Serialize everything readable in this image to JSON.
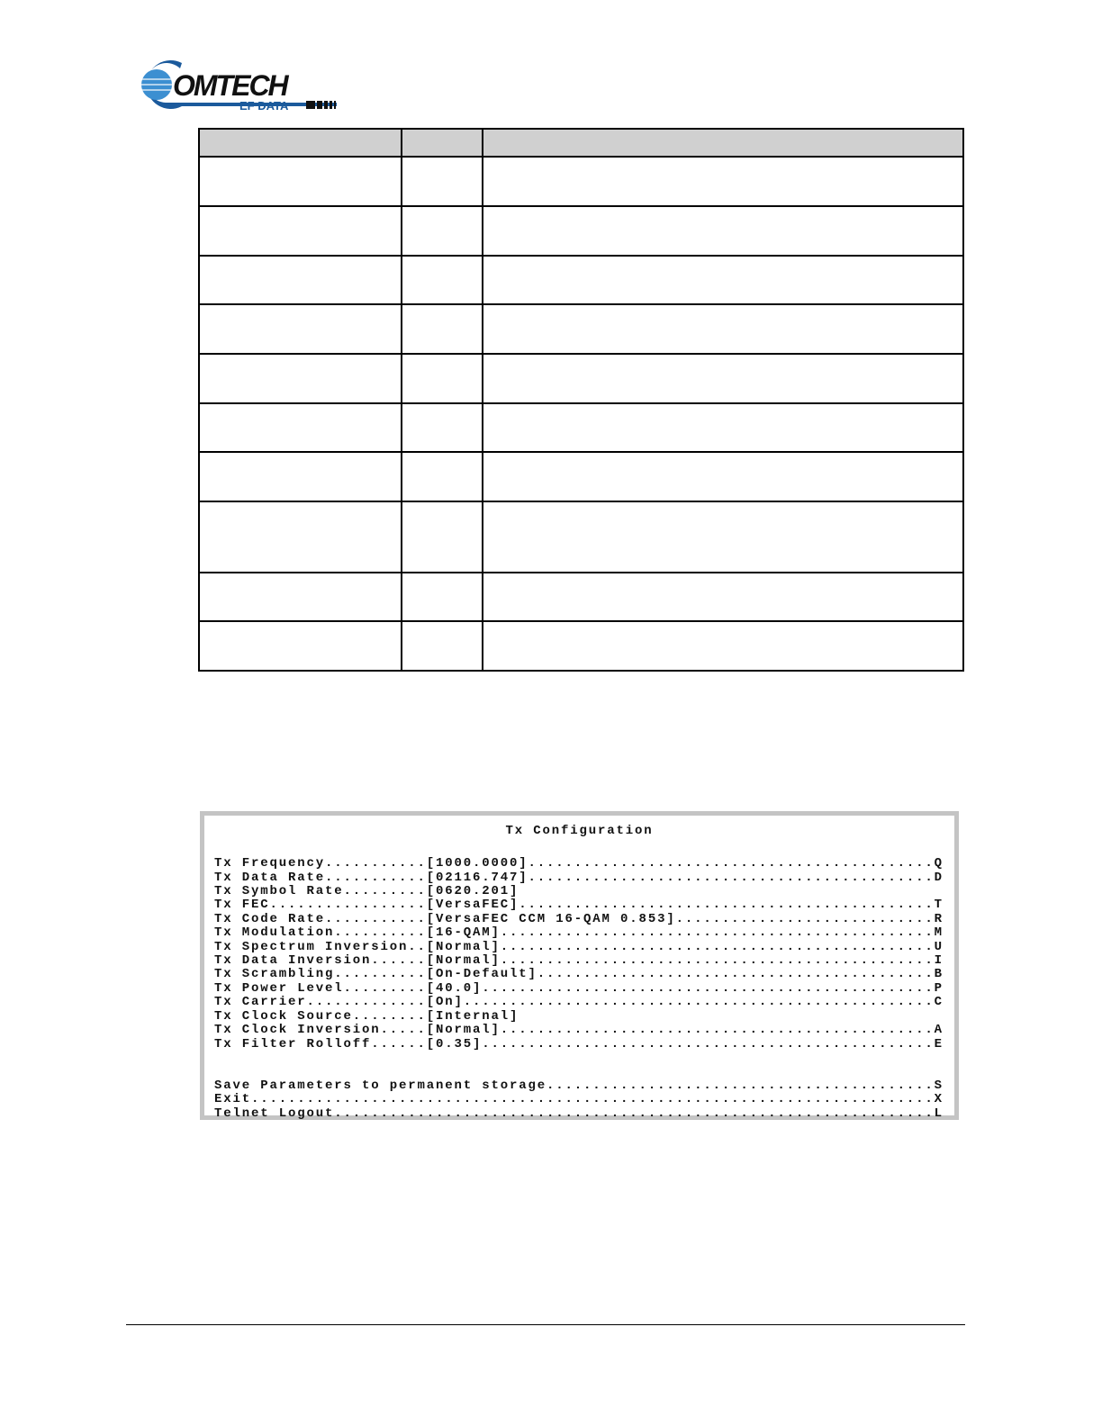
{
  "header": {
    "logo_text": "COMTECH",
    "logo_subtext": "EF DATA",
    "brand_color": "#1b5a9c"
  },
  "table": {
    "columns": 3,
    "header": [
      "",
      "",
      ""
    ],
    "rows": [
      [
        "",
        "",
        ""
      ],
      [
        "",
        "",
        ""
      ],
      [
        "",
        "",
        ""
      ],
      [
        "",
        "",
        ""
      ],
      [
        "",
        "",
        ""
      ],
      [
        "",
        "",
        ""
      ],
      [
        "",
        "",
        ""
      ],
      [
        "",
        "",
        ""
      ],
      [
        "",
        "",
        ""
      ],
      [
        "",
        "",
        ""
      ]
    ]
  },
  "terminal": {
    "title": "Tx Configuration",
    "items": [
      {
        "label": "Tx Frequency",
        "value": "[1000.0000]",
        "key": "Q"
      },
      {
        "label": "Tx Data Rate",
        "value": "[02116.747]",
        "key": "D"
      },
      {
        "label": "Tx Symbol Rate",
        "value": "[0620.201]",
        "key": ""
      },
      {
        "label": "Tx FEC",
        "value": "[VersaFEC]",
        "key": "T"
      },
      {
        "label": "Tx Code Rate",
        "value": "[VersaFEC CCM 16-QAM 0.853]",
        "key": "R"
      },
      {
        "label": "Tx Modulation",
        "value": "[16-QAM]",
        "key": "M"
      },
      {
        "label": "Tx Spectrum Inversion",
        "value": "[Normal]",
        "key": "U"
      },
      {
        "label": "Tx Data Inversion",
        "value": "[Normal]",
        "key": "I"
      },
      {
        "label": "Tx Scrambling",
        "value": "[On-Default]",
        "key": "B"
      },
      {
        "label": "Tx Power Level",
        "value": "[40.0]",
        "key": "P"
      },
      {
        "label": "Tx Carrier",
        "value": "[On]",
        "key": "C"
      },
      {
        "label": "Tx Clock Source",
        "value": "[Internal]",
        "key": ""
      },
      {
        "label": "Tx Clock Inversion",
        "value": "[Normal]",
        "key": "A"
      },
      {
        "label": "Tx Filter Rolloff",
        "value": "[0.35]",
        "key": "E"
      }
    ],
    "actions": [
      {
        "label": "Save Parameters to permanent storage",
        "key": "S"
      },
      {
        "label": "Exit",
        "key": "X"
      },
      {
        "label": "Telnet Logout",
        "key": "L"
      }
    ]
  }
}
